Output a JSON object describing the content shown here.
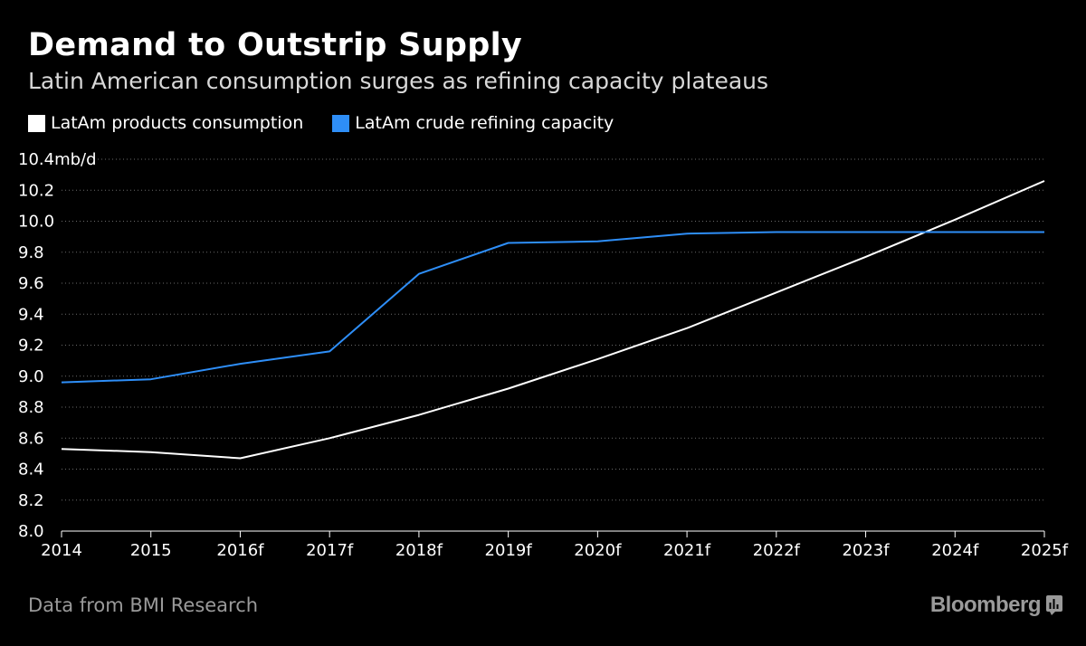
{
  "header": {
    "title": "Demand to Outstrip Supply",
    "subtitle": "Latin American consumption surges as refining capacity plateaus"
  },
  "legend": [
    {
      "label": "LatAm products consumption",
      "color": "#ffffff"
    },
    {
      "label": "LatAm crude refining capacity",
      "color": "#2e8ef7"
    }
  ],
  "footer": {
    "source": "Data from BMI Research",
    "brand": "Bloomberg",
    "brand_icon": "bar-chart-icon"
  },
  "chart_data": {
    "type": "line",
    "title": "Demand to Outstrip Supply",
    "subtitle": "Latin American consumption surges as refining capacity plateaus",
    "xlabel": "",
    "ylabel": "mb/d",
    "unit_label": "10.4mb/d",
    "categories": [
      "2014",
      "2015",
      "2016f",
      "2017f",
      "2018f",
      "2019f",
      "2020f",
      "2021f",
      "2022f",
      "2023f",
      "2024f",
      "2025f"
    ],
    "y_ticks": [
      "8.0",
      "8.2",
      "8.4",
      "8.6",
      "8.8",
      "9.0",
      "9.2",
      "9.4",
      "9.6",
      "9.8",
      "10.0",
      "10.2",
      "10.4mb/d"
    ],
    "ylim": [
      8.0,
      10.4
    ],
    "grid": true,
    "legend_position": "top-left",
    "series": [
      {
        "name": "LatAm products consumption",
        "color": "#ffffff",
        "values": [
          8.53,
          8.51,
          8.47,
          8.6,
          8.75,
          8.92,
          9.11,
          9.31,
          9.54,
          9.77,
          10.01,
          10.26
        ]
      },
      {
        "name": "LatAm crude refining capacity",
        "color": "#2e8ef7",
        "values": [
          8.96,
          8.98,
          9.08,
          9.16,
          9.66,
          9.86,
          9.87,
          9.92,
          9.93,
          9.93,
          9.93,
          9.93
        ]
      }
    ]
  }
}
